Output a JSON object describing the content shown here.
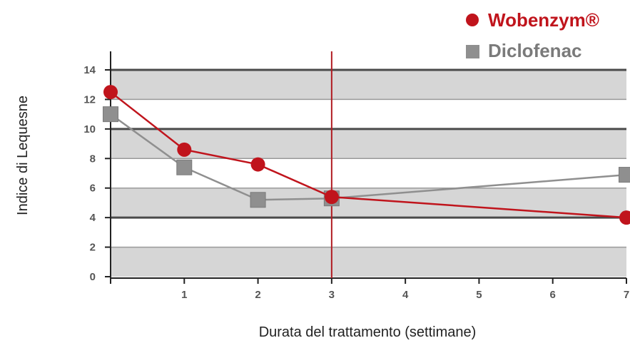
{
  "chart_data": {
    "type": "line",
    "title": "",
    "xlabel": "Durata del trattamento (settimane)",
    "ylabel": "Indice di Lequesne",
    "x_ticks": [
      "1",
      "2",
      "3",
      "4",
      "5",
      "6",
      "7"
    ],
    "y_ticks": [
      "0",
      "2",
      "4",
      "6",
      "8",
      "10",
      "12",
      "14"
    ],
    "xlim": [
      0,
      7
    ],
    "ylim": [
      0,
      14
    ],
    "reference_line_x": 3,
    "legend_position": "top-right",
    "series": [
      {
        "name": "Wobenzym®",
        "marker": "circle",
        "color": "#c0141c",
        "x": [
          0,
          1,
          2,
          3,
          7
        ],
        "y": [
          12.5,
          8.6,
          7.6,
          5.4,
          4.0
        ]
      },
      {
        "name": "Diclofenac",
        "marker": "square",
        "color": "#8f8f8f",
        "x": [
          0,
          1,
          2,
          3,
          7
        ],
        "y": [
          11.0,
          7.4,
          5.2,
          5.3,
          6.9
        ]
      }
    ],
    "colors": {
      "band": "#d6d6d6",
      "gridline": "#4a4a4a",
      "reference_line": "#b01c22"
    }
  }
}
